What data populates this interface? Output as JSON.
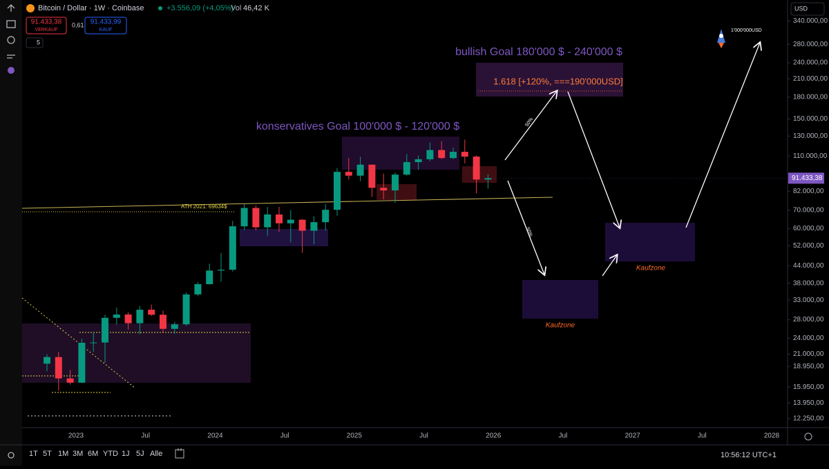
{
  "chart_data": {
    "type": "candlestick",
    "header": {
      "title": "Bitcoin / Dollar · 1W · Coinbase",
      "change": "+3.556,09 (+4,05%)",
      "vol_label": "Vol",
      "vol": "46,42 K",
      "sell_price": "91.433,38",
      "sell_label": "VERKAUF",
      "spread": "0,61",
      "buy_price": "91.433,99",
      "buy_label": "KAUF",
      "indicator_count": "5",
      "currency": "USD"
    },
    "categories": [
      "2022-10",
      "2022-11",
      "2022-12",
      "2023-01",
      "2023-02",
      "2023-03",
      "2023-04",
      "2023-05",
      "2023-06",
      "2023-07",
      "2023-08",
      "2023-09",
      "2023-10",
      "2023-11",
      "2023-12",
      "2024-01",
      "2024-02",
      "2024-03",
      "2024-04",
      "2024-05",
      "2024-06",
      "2024-07",
      "2024-08",
      "2024-09",
      "2024-10",
      "2024-11",
      "2024-12",
      "2025-01",
      "2025-02",
      "2025-03",
      "2025-04",
      "2025-05",
      "2025-06",
      "2025-07",
      "2025-08",
      "2025-09",
      "2025-10",
      "2025-11",
      "2025-12"
    ],
    "open": [
      19400,
      20500,
      17150,
      16550,
      23100,
      23150,
      28450,
      29250,
      27200,
      30450,
      29200,
      25950,
      26950,
      34600,
      37700,
      42250,
      42550,
      61150,
      71300,
      60650,
      67500,
      62700,
      64600,
      58950,
      63300,
      70200,
      96400,
      93400,
      102400,
      84350,
      82550,
      94200,
      104600,
      107100,
      115700,
      108200,
      114000,
      109500,
      90400
    ],
    "high": [
      21000,
      21400,
      18400,
      23900,
      25200,
      29200,
      31000,
      29800,
      31400,
      31800,
      30200,
      27500,
      35200,
      38400,
      44700,
      48900,
      64000,
      73800,
      72800,
      71900,
      71900,
      70000,
      65000,
      66500,
      73600,
      99600,
      108300,
      109400,
      102500,
      95000,
      95800,
      112000,
      110500,
      123200,
      124500,
      117900,
      126200,
      110600,
      94600
    ],
    "low": [
      18200,
      15500,
      16300,
      16500,
      21400,
      19550,
      26900,
      25800,
      24800,
      28900,
      25200,
      24900,
      26600,
      34100,
      37600,
      38500,
      41900,
      59300,
      59200,
      56500,
      58400,
      53500,
      49000,
      52600,
      58900,
      66800,
      90500,
      89200,
      78200,
      76600,
      74500,
      93400,
      98200,
      105300,
      107300,
      107300,
      103500,
      80600,
      83800
    ],
    "close": [
      20500,
      17150,
      16550,
      23100,
      23150,
      28450,
      29250,
      27200,
      30450,
      29200,
      25950,
      26950,
      34600,
      37700,
      42250,
      42550,
      61150,
      71300,
      60650,
      67500,
      62700,
      64600,
      58950,
      63300,
      70200,
      96400,
      93400,
      102400,
      84350,
      82550,
      94200,
      104600,
      107100,
      115700,
      108200,
      114000,
      109500,
      90400,
      91433.38
    ],
    "up_color": "#089981",
    "down_color": "#f23645",
    "log_scale": true,
    "grid": false,
    "ylim": [
      11365,
      405500
    ],
    "yticks": [
      {
        "value": 340000,
        "label": "340.000,00"
      },
      {
        "value": 280000,
        "label": "280.000,00"
      },
      {
        "value": 240000,
        "label": "240.000,00"
      },
      {
        "value": 210000,
        "label": "210.000,00"
      },
      {
        "value": 180000,
        "label": "180.000,00"
      },
      {
        "value": 150000,
        "label": "150.000,00"
      },
      {
        "value": 130000,
        "label": "130.000,00"
      },
      {
        "value": 110000,
        "label": "110.000,00"
      },
      {
        "value": 82000,
        "label": "82.000,00"
      },
      {
        "value": 70000,
        "label": "70.000,00"
      },
      {
        "value": 60000,
        "label": "60.000,00"
      },
      {
        "value": 52000,
        "label": "52.000,00"
      },
      {
        "value": 44000,
        "label": "44.000,00"
      },
      {
        "value": 38000,
        "label": "38.000,00"
      },
      {
        "value": 33000,
        "label": "33.000,00"
      },
      {
        "value": 28000,
        "label": "28.000,00"
      },
      {
        "value": 24000,
        "label": "24.000,00"
      },
      {
        "value": 21000,
        "label": "21.000,00"
      },
      {
        "value": 18950,
        "label": "18.950,00"
      },
      {
        "value": 15950,
        "label": "15.950,00"
      },
      {
        "value": 13950,
        "label": "13.950,00"
      },
      {
        "value": 12250,
        "label": "12.250,00"
      }
    ],
    "last_price": {
      "value": 91433.38,
      "label": "91.433,38"
    },
    "x_axis_labels": [
      "2023",
      "Jul",
      "2024",
      "Jul",
      "2025",
      "Jul",
      "2026",
      "Jul",
      "2027",
      "Jul",
      "2028"
    ],
    "annotations": {
      "bullish_goal": "bullish Goal 180'000 $ - 240'000 $",
      "fib": "1.618 [+120%, ===190'000USD]",
      "conservative_goal": "konservatives Goal 100'000 $ - 120'000 $",
      "ath": "ATH 2021: 69634$",
      "pct_up": "50%",
      "pct_down": "50%",
      "buy_zone_1": "Kaufzone",
      "buy_zone_2": "Kaufzone",
      "moon": "1'000'000USD"
    },
    "ranges": [
      "1T",
      "5T",
      "1M",
      "3M",
      "6M",
      "YTD",
      "1J",
      "5J",
      "Alle"
    ],
    "clock": "10:56:12 UTC+1"
  }
}
